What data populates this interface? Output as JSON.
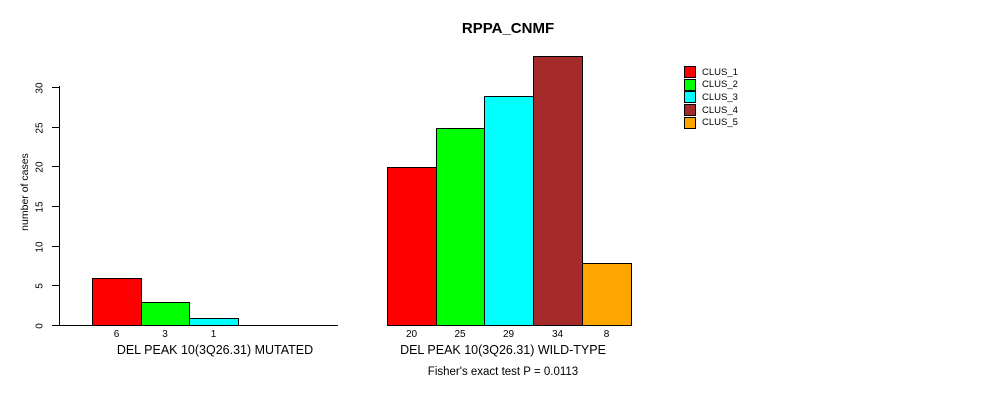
{
  "title": "RPPA_CNMF",
  "chart_data": {
    "type": "bar",
    "title": "RPPA_CNMF",
    "xlabel": "",
    "ylabel": "number of cases",
    "ylim": [
      0,
      34
    ],
    "yticks": [
      0,
      5,
      10,
      15,
      20,
      25,
      30
    ],
    "grid": false,
    "legend_position": "right",
    "legend": [
      {
        "label": "CLUS_1",
        "color": "#FF0000"
      },
      {
        "label": "CLUS_2",
        "color": "#00FF00"
      },
      {
        "label": "CLUS_3",
        "color": "#00FFFF"
      },
      {
        "label": "CLUS_4",
        "color": "#A52A2A"
      },
      {
        "label": "CLUS_5",
        "color": "#FFA500"
      }
    ],
    "groups": [
      {
        "id": "mutated",
        "label": "DEL PEAK 10(3Q26.31) MUTATED",
        "bars": [
          {
            "cluster": "CLUS_1",
            "value": 6,
            "color": "#FF0000"
          },
          {
            "cluster": "CLUS_2",
            "value": 3,
            "color": "#00FF00"
          },
          {
            "cluster": "CLUS_3",
            "value": 1,
            "color": "#00FFFF"
          }
        ]
      },
      {
        "id": "wildtype",
        "label": "DEL PEAK 10(3Q26.31) WILD-TYPE",
        "bars": [
          {
            "cluster": "CLUS_1",
            "value": 20,
            "color": "#FF0000"
          },
          {
            "cluster": "CLUS_2",
            "value": 25,
            "color": "#00FF00"
          },
          {
            "cluster": "CLUS_3",
            "value": 29,
            "color": "#00FFFF"
          },
          {
            "cluster": "CLUS_4",
            "value": 34,
            "color": "#A52A2A"
          },
          {
            "cluster": "CLUS_5",
            "value": 8,
            "color": "#FFA500"
          }
        ]
      }
    ],
    "annotation": "Fisher's exact test P = 0.0113"
  }
}
